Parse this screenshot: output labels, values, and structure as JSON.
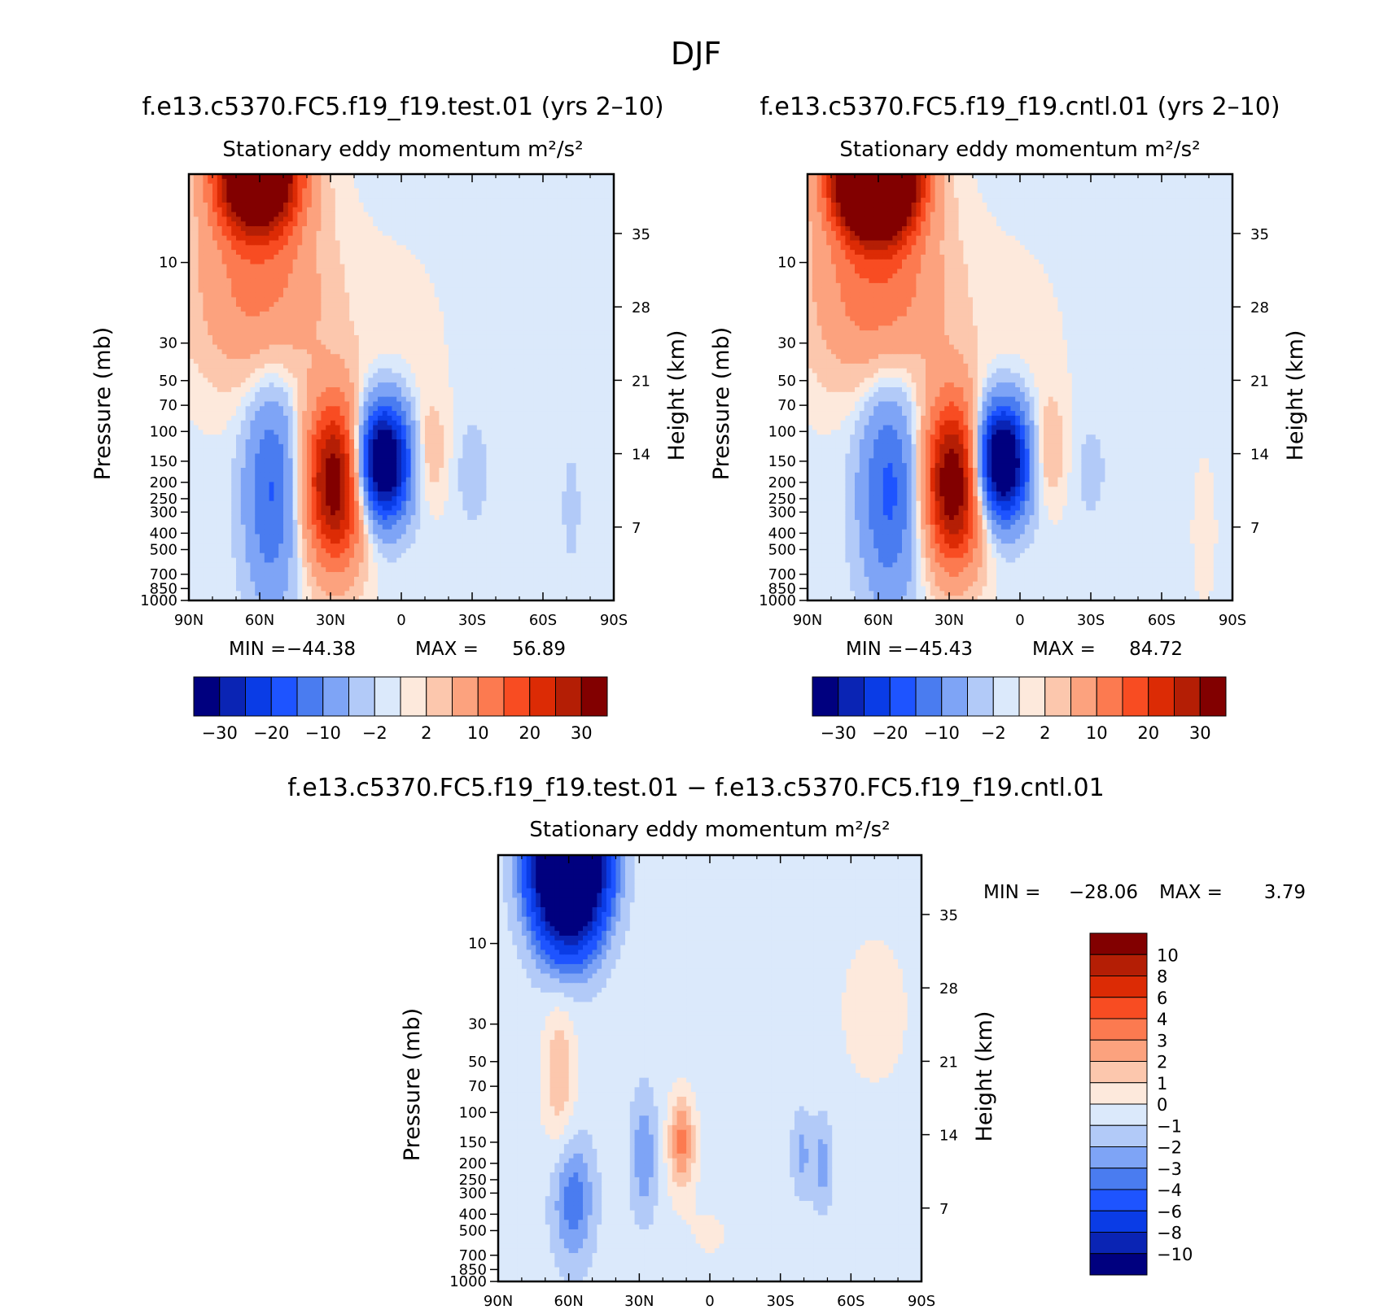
{
  "figure": {
    "title": "DJF",
    "season": "DJF"
  },
  "colors": {
    "palette16": [
      "#00007f",
      "#0a24b4",
      "#0a3ce6",
      "#1e54ff",
      "#4a7cf0",
      "#7ea4f6",
      "#b2caf8",
      "#dbe9fb",
      "#fde9dc",
      "#fcc7ad",
      "#fca27e",
      "#fc7a50",
      "#f84c22",
      "#dc2b05",
      "#b41e05",
      "#820000"
    ],
    "palette14": [
      "#00007f",
      "#0a24b4",
      "#0a3ce6",
      "#1e54ff",
      "#4a7cf0",
      "#7ea4f6",
      "#b2caf8",
      "#dbe9fb",
      "#fde9dc",
      "#fcc7ad",
      "#fca27e",
      "#fc7a50",
      "#f84c22",
      "#dc2b05"
    ]
  },
  "chart_data": [
    {
      "id": "test",
      "type": "heatmap",
      "case_title": "f.e13.c5370.FC5.f19_f19.test.01 (yrs 2–10)",
      "variable_title": "Stationary eddy momentum m²/s²",
      "xlabel": "",
      "ylabel": "Pressure (mb)",
      "y2label": "Height (km)",
      "x_range": [
        90,
        -90
      ],
      "x_ticks": [
        90,
        60,
        30,
        0,
        -30,
        -60,
        -90
      ],
      "x_tick_labels": [
        "90N",
        "60N",
        "30N",
        "0",
        "30S",
        "60S",
        "90S"
      ],
      "y_range_mb": [
        1000,
        3
      ],
      "y_ticks": [
        10,
        30,
        50,
        70,
        100,
        150,
        200,
        250,
        300,
        400,
        500,
        700,
        850,
        1000
      ],
      "y_tick_labels": [
        "10",
        "30",
        "50",
        "70",
        "100",
        "150",
        "200",
        "250",
        "300",
        "400",
        "500",
        "700",
        "850",
        "1000"
      ],
      "y2_ticks_km": [
        35,
        28,
        21,
        14,
        7
      ],
      "y2_tick_labels": [
        "35",
        "28",
        "21",
        "14",
        "7"
      ],
      "min_label": "MIN =",
      "min_value": "−44.38",
      "max_label": "MAX =",
      "max_value": "56.89",
      "levels": [
        -30,
        -25,
        -20,
        -15,
        -10,
        -5,
        -2,
        0,
        2,
        5,
        10,
        15,
        20,
        25,
        30
      ],
      "colorbar_labels": [
        "−30",
        "−20",
        "−10",
        "−2",
        "2",
        "10",
        "20",
        "30"
      ],
      "features": [
        {
          "lat": 61,
          "p": 3,
          "amp": 56.89,
          "slat": 12,
          "sz": 0.55
        },
        {
          "lat": 60,
          "p": 15,
          "amp": 12,
          "slat": 20,
          "sz": 0.9
        },
        {
          "lat": 55,
          "p": 220,
          "amp": -15,
          "slat": 8,
          "sz": 1.05
        },
        {
          "lat": 28,
          "p": 200,
          "amp": 36,
          "slat": 9,
          "sz": 0.8
        },
        {
          "lat": 8,
          "p": 150,
          "amp": -44.38,
          "slat": 8,
          "sz": 0.55
        },
        {
          "lat": -12,
          "p": 130,
          "amp": 5,
          "slat": 5,
          "sz": 0.5
        },
        {
          "lat": -30,
          "p": 170,
          "amp": -3,
          "slat": 5,
          "sz": 0.55
        },
        {
          "lat": -72,
          "p": 280,
          "amp": -2.5,
          "slat": 3,
          "sz": 0.6
        },
        {
          "lat": 0,
          "p": 40,
          "amp": 1.5,
          "slat": 14,
          "sz": 1.1
        }
      ],
      "background": -0.6
    },
    {
      "id": "cntl",
      "type": "heatmap",
      "case_title": "f.e13.c5370.FC5.f19_f19.cntl.01 (yrs 2–10)",
      "variable_title": "Stationary eddy momentum m²/s²",
      "xlabel": "",
      "ylabel": "Pressure (mb)",
      "y2label": "Height (km)",
      "x_range": [
        90,
        -90
      ],
      "x_ticks": [
        90,
        60,
        30,
        0,
        -30,
        -60,
        -90
      ],
      "x_tick_labels": [
        "90N",
        "60N",
        "30N",
        "0",
        "30S",
        "60S",
        "90S"
      ],
      "y_range_mb": [
        1000,
        3
      ],
      "y_ticks": [
        10,
        30,
        50,
        70,
        100,
        150,
        200,
        250,
        300,
        400,
        500,
        700,
        850,
        1000
      ],
      "y_tick_labels": [
        "10",
        "30",
        "50",
        "70",
        "100",
        "150",
        "200",
        "250",
        "300",
        "400",
        "500",
        "700",
        "850",
        "1000"
      ],
      "y2_ticks_km": [
        35,
        28,
        21,
        14,
        7
      ],
      "y2_tick_labels": [
        "35",
        "28",
        "21",
        "14",
        "7"
      ],
      "min_label": "MIN =",
      "min_value": "−45.43",
      "max_label": "MAX =",
      "max_value": "84.72",
      "levels": [
        -30,
        -25,
        -20,
        -15,
        -10,
        -5,
        -2,
        0,
        2,
        5,
        10,
        15,
        20,
        25,
        30
      ],
      "colorbar_labels": [
        "−30",
        "−20",
        "−10",
        "−2",
        "2",
        "10",
        "20",
        "30"
      ],
      "features": [
        {
          "lat": 61,
          "p": 3,
          "amp": 84.72,
          "slat": 12,
          "sz": 0.55
        },
        {
          "lat": 60,
          "p": 15,
          "amp": 14,
          "slat": 20,
          "sz": 0.9
        },
        {
          "lat": 55,
          "p": 220,
          "amp": -16,
          "slat": 9,
          "sz": 1.05
        },
        {
          "lat": 28,
          "p": 200,
          "amp": 38,
          "slat": 9,
          "sz": 0.8
        },
        {
          "lat": 8,
          "p": 150,
          "amp": -45.43,
          "slat": 8,
          "sz": 0.55
        },
        {
          "lat": -12,
          "p": 130,
          "amp": 6,
          "slat": 5,
          "sz": 0.5
        },
        {
          "lat": -30,
          "p": 170,
          "amp": -2.5,
          "slat": 5,
          "sz": 0.5
        },
        {
          "lat": -78,
          "p": 400,
          "amp": 2.5,
          "slat": 3,
          "sz": 0.6
        },
        {
          "lat": 0,
          "p": 40,
          "amp": 1.5,
          "slat": 14,
          "sz": 1.1
        }
      ],
      "background": -0.6
    },
    {
      "id": "diff",
      "type": "heatmap",
      "case_title": "f.e13.c5370.FC5.f19_f19.test.01 − f.e13.c5370.FC5.f19_f19.cntl.01",
      "variable_title": "Stationary eddy momentum m²/s²",
      "xlabel": "",
      "ylabel": "Pressure (mb)",
      "y2label": "Height (km)",
      "x_range": [
        90,
        -90
      ],
      "x_ticks": [
        90,
        60,
        30,
        0,
        -30,
        -60,
        -90
      ],
      "x_tick_labels": [
        "90N",
        "60N",
        "30N",
        "0",
        "30S",
        "60S",
        "90S"
      ],
      "y_range_mb": [
        1000,
        3
      ],
      "y_ticks": [
        10,
        30,
        50,
        70,
        100,
        150,
        200,
        250,
        300,
        400,
        500,
        700,
        850,
        1000
      ],
      "y_tick_labels": [
        "10",
        "30",
        "50",
        "70",
        "100",
        "150",
        "200",
        "250",
        "300",
        "400",
        "500",
        "700",
        "850",
        "1000"
      ],
      "y2_ticks_km": [
        35,
        28,
        21,
        14,
        7
      ],
      "y2_tick_labels": [
        "35",
        "28",
        "21",
        "14",
        "7"
      ],
      "min_label": "MIN =",
      "min_value": "−28.06",
      "max_label": "MAX =",
      "max_value": "3.79",
      "levels": [
        -10,
        -8,
        -6,
        -4,
        -3,
        -2,
        -1,
        0,
        1,
        2,
        3,
        4,
        6,
        8,
        10
      ],
      "colorbar_labels": [
        "10",
        "8",
        "6",
        "4",
        "3",
        "2",
        "1",
        "0",
        "−1",
        "−2",
        "−3",
        "−4",
        "−6",
        "−8",
        "−10"
      ],
      "features": [
        {
          "lat": 60,
          "p": 3,
          "amp": -28.06,
          "slat": 10,
          "sz": 0.75
        },
        {
          "lat": 64,
          "p": 60,
          "amp": 2.4,
          "slat": 5,
          "sz": 0.7
        },
        {
          "lat": 12,
          "p": 150,
          "amp": 3.79,
          "slat": 4,
          "sz": 0.45
        },
        {
          "lat": 28,
          "p": 180,
          "amp": -2.3,
          "slat": 4,
          "sz": 0.6
        },
        {
          "lat": 58,
          "p": 330,
          "amp": -3.2,
          "slat": 6,
          "sz": 0.6
        },
        {
          "lat": -39,
          "p": 175,
          "amp": -1.8,
          "slat": 3,
          "sz": 0.4
        },
        {
          "lat": -48,
          "p": 200,
          "amp": -2,
          "slat": 3,
          "sz": 0.45
        },
        {
          "lat": -70,
          "p": 25,
          "amp": 0.8,
          "slat": 14,
          "sz": 1.0
        },
        {
          "lat": 0,
          "p": 520,
          "amp": 0.6,
          "slat": 10,
          "sz": 0.4
        }
      ],
      "background": -0.5
    }
  ]
}
